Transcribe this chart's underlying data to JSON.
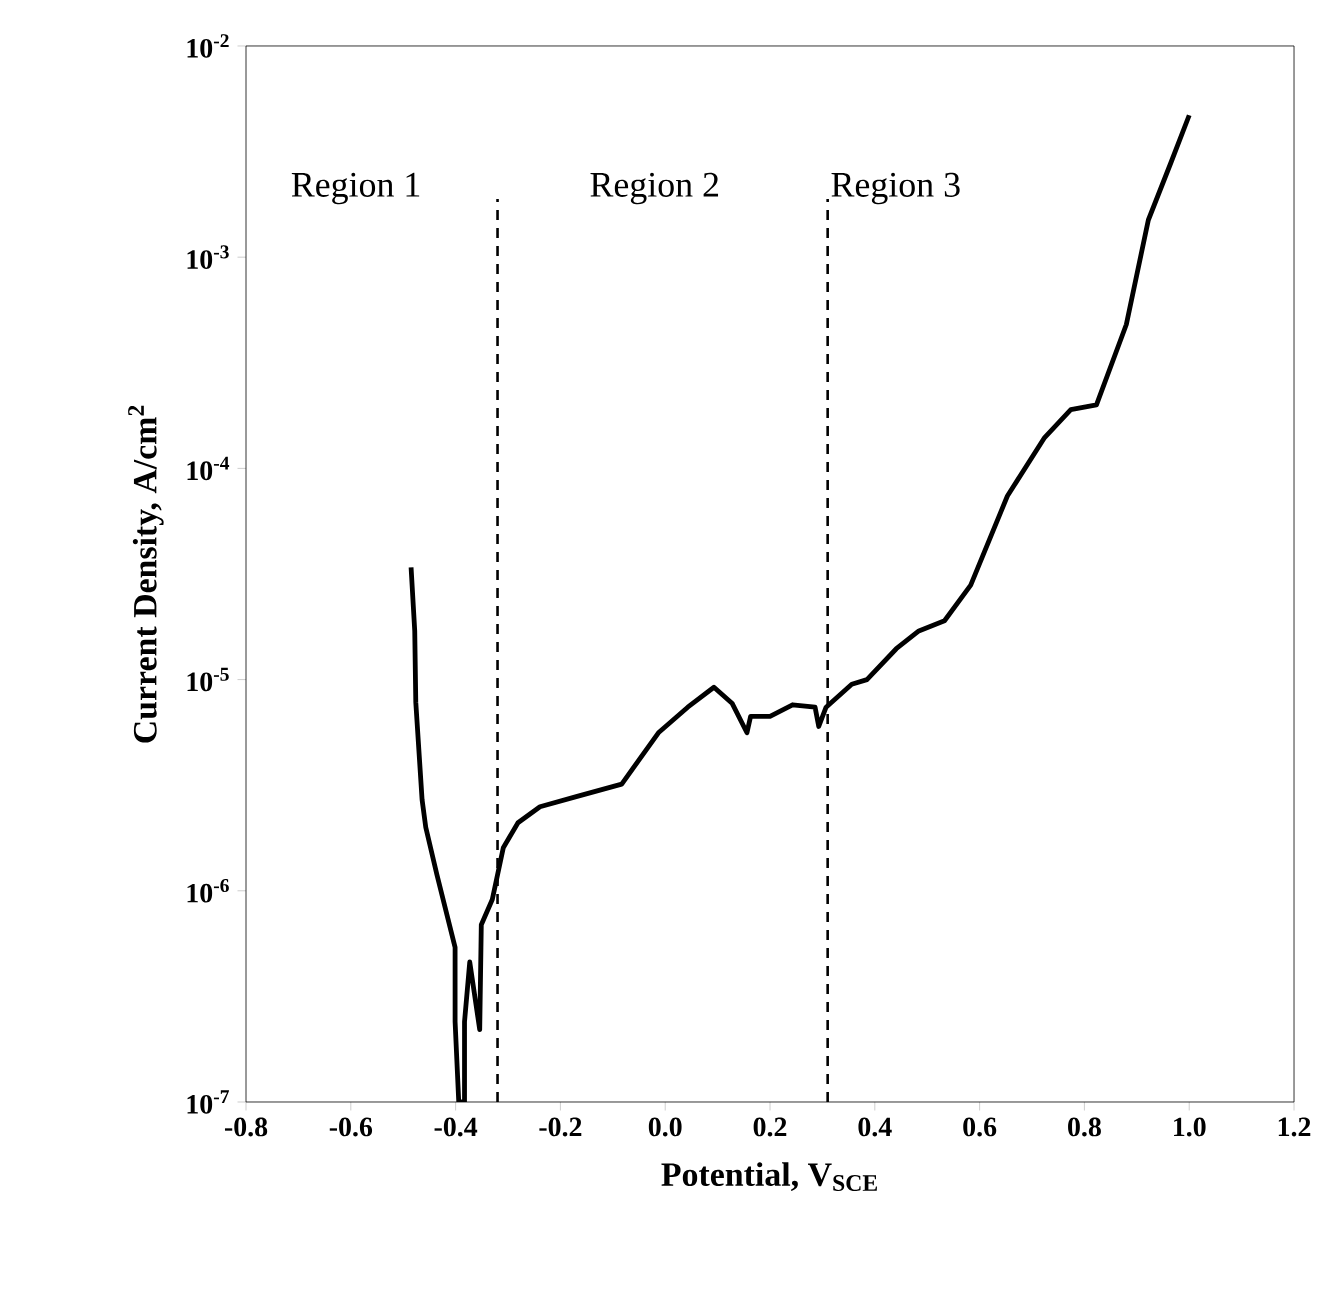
{
  "chart_data": {
    "type": "line",
    "xlabel": "Potential, V$_{SCE}$",
    "ylabel": "Current Density, A/cm$^{2}$",
    "log": "y",
    "xlim": [
      -0.8,
      1.2
    ],
    "ylim": [
      1e-07,
      0.01
    ],
    "xticks": [
      {
        "value": -0.8,
        "label": "-0.8"
      },
      {
        "value": -0.6,
        "label": "-0.6"
      },
      {
        "value": -0.4,
        "label": "-0.4"
      },
      {
        "value": -0.2,
        "label": "-0.2"
      },
      {
        "value": 0,
        "label": "0.0"
      },
      {
        "value": 0.2,
        "label": "0.2"
      },
      {
        "value": 0.4,
        "label": "0.4"
      },
      {
        "value": 0.6,
        "label": "0.6"
      },
      {
        "value": 0.8,
        "label": "0.8"
      },
      {
        "value": 1.0,
        "label": "1.0"
      },
      {
        "value": 1.2,
        "label": "1.2"
      }
    ],
    "yticks": [
      {
        "value": 1e-07,
        "label": "10$^{-7}$"
      },
      {
        "value": 1e-06,
        "label": "10$^{-6}$"
      },
      {
        "value": 1e-05,
        "label": "10$^{-5}$"
      },
      {
        "value": 0.0001,
        "label": "10$^{-4}$"
      },
      {
        "value": 0.001,
        "label": "10$^{-3}$"
      },
      {
        "value": 0.01,
        "label": "10$^{-2}$"
      }
    ],
    "grid": false,
    "marker": "none",
    "line_style": "solid",
    "series": [
      {
        "color": "#000000",
        "x": [
          -0.485,
          -0.478,
          -0.476,
          -0.464,
          -0.457,
          -0.436,
          -0.401,
          -0.401,
          -0.394,
          -0.383,
          -0.383,
          -0.373,
          -0.354,
          -0.351,
          -0.33,
          -0.309,
          -0.281,
          -0.239,
          -0.168,
          -0.083,
          -0.013,
          0.043,
          0.093,
          0.128,
          0.156,
          0.163,
          0.2,
          0.243,
          0.286,
          0.293,
          0.307,
          0.356,
          0.385,
          0.441,
          0.484,
          0.533,
          0.583,
          0.653,
          0.724,
          0.774,
          0.823,
          0.88,
          0.922,
          0.965,
          1.0
        ],
        "values": [
          3.4e-05,
          1.7e-05,
          7.8e-06,
          2.7e-06,
          2e-06,
          1.2e-06,
          5.4e-07,
          2.4e-07,
          1e-07,
          1e-07,
          2.4e-07,
          4.6e-07,
          2.2e-07,
          6.9e-07,
          9.1e-07,
          1.6e-06,
          2.1e-06,
          2.5e-06,
          2.8e-06,
          3.2e-06,
          5.6e-06,
          7.4e-06,
          9.2e-06,
          7.7e-06,
          5.6e-06,
          6.7e-06,
          6.7e-06,
          7.6e-06,
          7.4e-06,
          6e-06,
          7.4e-06,
          9.5e-06,
          1e-05,
          1.4e-05,
          1.7e-05,
          1.9e-05,
          2.8e-05,
          7.4e-05,
          0.00014,
          0.00019,
          0.0002,
          0.00048,
          0.0015,
          0.0028,
          0.0047
        ]
      }
    ],
    "ref_lines": [
      {
        "axis": "x",
        "value": -0.32,
        "line_style": "dashed",
        "color": "#000000"
      },
      {
        "axis": "x",
        "value": 0.31,
        "line_style": "dashed",
        "color": "#000000"
      }
    ],
    "annotations": [
      "Region 1",
      "Region 2",
      "Region 3"
    ]
  }
}
